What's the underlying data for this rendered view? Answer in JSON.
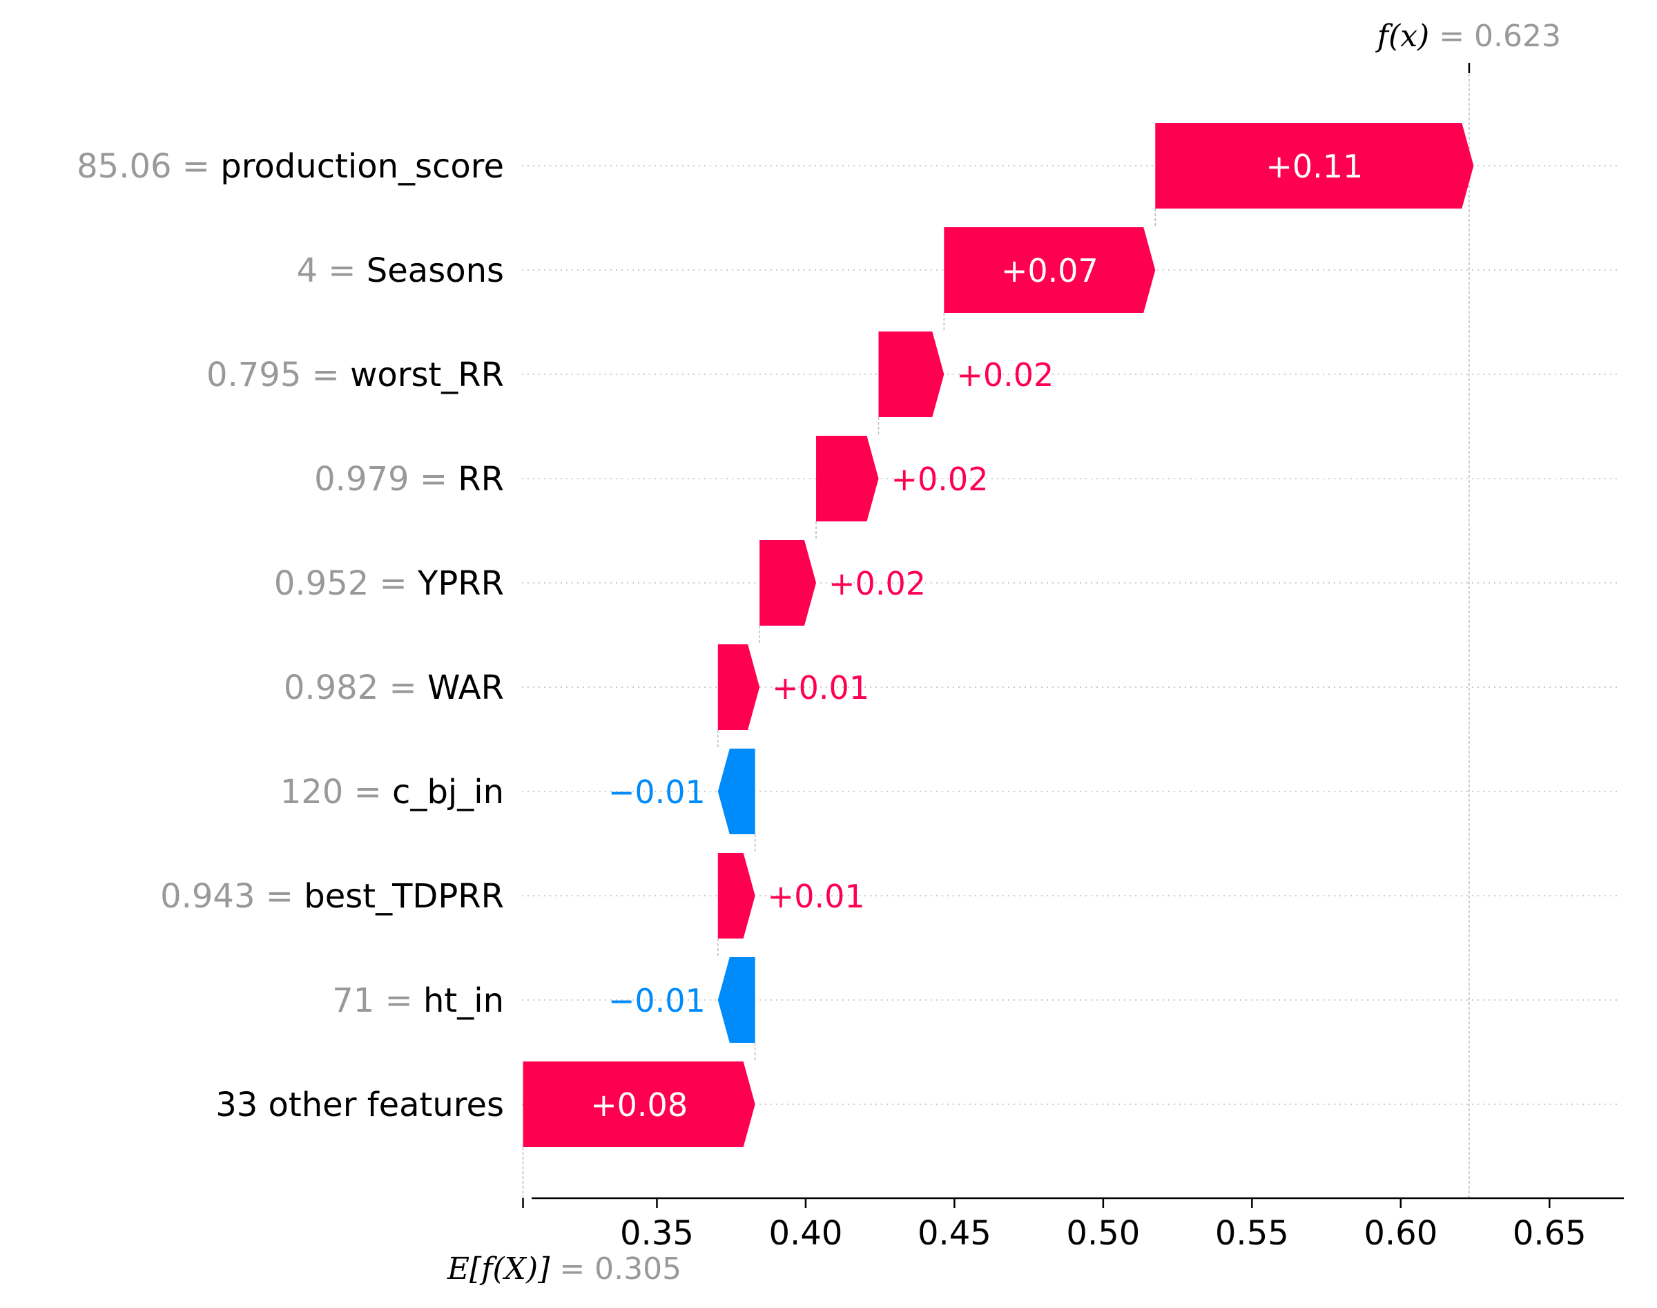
{
  "colors": {
    "positive": "#ff0051",
    "negative": "#008bfb",
    "text": "#000000",
    "muted": "#999999",
    "grid": "#cccccc",
    "connector": "#bbbbbb"
  },
  "chart_data": {
    "type": "waterfall",
    "base_value": 0.305,
    "final_value": 0.623,
    "base_label": {
      "expr": "E[f(X)]",
      "value_text": "= 0.305"
    },
    "final_label": {
      "expr": "f(x)",
      "value_text": "= 0.623"
    },
    "xlim": [
      0.3,
      0.675
    ],
    "x_ticks": [
      0.35,
      0.4,
      0.45,
      0.5,
      0.55,
      0.6,
      0.65
    ],
    "x_tick_labels": [
      "0.35",
      "0.40",
      "0.45",
      "0.50",
      "0.55",
      "0.60",
      "0.65"
    ],
    "features": [
      {
        "value": "85.06",
        "name": "production_score",
        "contribution": 0.107,
        "label": "+0.11"
      },
      {
        "value": "4",
        "name": "Seasons",
        "contribution": 0.071,
        "label": "+0.07"
      },
      {
        "value": "0.795",
        "name": "worst_RR",
        "contribution": 0.022,
        "label": "+0.02"
      },
      {
        "value": "0.979",
        "name": "RR",
        "contribution": 0.021,
        "label": "+0.02"
      },
      {
        "value": "0.952",
        "name": "YPRR",
        "contribution": 0.019,
        "label": "+0.02"
      },
      {
        "value": "0.982",
        "name": "WAR",
        "contribution": 0.014,
        "label": "+0.01"
      },
      {
        "value": "120",
        "name": "c_bj_in",
        "contribution": -0.0125,
        "label": "−0.01"
      },
      {
        "value": "0.943",
        "name": "best_TDPRR",
        "contribution": 0.0125,
        "label": "+0.01"
      },
      {
        "value": "71",
        "name": "ht_in",
        "contribution": -0.0125,
        "label": "−0.01"
      },
      {
        "value": "",
        "name": "33 other features",
        "contribution": 0.078,
        "label": "+0.08"
      }
    ]
  }
}
